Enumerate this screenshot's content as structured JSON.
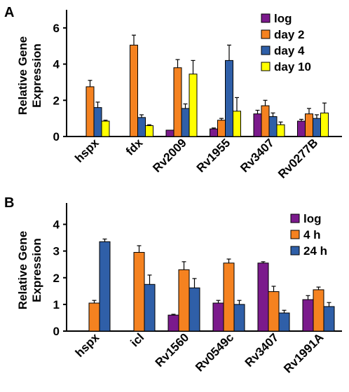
{
  "chart_data": [
    {
      "type": "bar",
      "panel": "A",
      "ylabel": [
        "Relative Gene",
        "Expression"
      ],
      "ylim": [
        0,
        7
      ],
      "yticks": [
        0,
        2,
        4,
        6
      ],
      "categories": [
        "hspx",
        "fdx",
        "Rv2009",
        "Rv1955",
        "Rv3407",
        "Rv0277B"
      ],
      "series": [
        {
          "name": "log",
          "color": "#7b1a8c",
          "values": [
            0.02,
            0.02,
            0.35,
            0.42,
            1.25,
            0.85
          ],
          "errors": [
            0.0,
            0.0,
            0.0,
            0.05,
            0.2,
            0.1
          ]
        },
        {
          "name": "day 2",
          "color": "#f58220",
          "values": [
            2.75,
            5.05,
            3.8,
            0.9,
            1.7,
            1.25
          ],
          "errors": [
            0.35,
            0.55,
            0.45,
            0.1,
            0.3,
            0.3
          ]
        },
        {
          "name": "day 4",
          "color": "#2f5fa8",
          "values": [
            1.6,
            1.05,
            1.55,
            4.2,
            1.1,
            1.0
          ],
          "errors": [
            0.3,
            0.15,
            0.25,
            0.85,
            0.2,
            0.2
          ]
        },
        {
          "name": "day 10",
          "color": "#ffff00",
          "values": [
            0.85,
            0.6,
            3.45,
            1.4,
            0.65,
            1.3
          ],
          "errors": [
            0.05,
            0.05,
            0.75,
            0.75,
            0.15,
            0.55
          ]
        }
      ],
      "legend_position": "top-right",
      "grid": false
    },
    {
      "type": "bar",
      "panel": "B",
      "ylabel": [
        "Relative Gene",
        "Expression"
      ],
      "ylim": [
        0,
        4.8
      ],
      "yticks": [
        0,
        1,
        2,
        3,
        4
      ],
      "categories": [
        "hspx",
        "icl",
        "Rv1560",
        "Rv0549c",
        "Rv3407",
        "Rv1991A"
      ],
      "series": [
        {
          "name": "log",
          "color": "#7b1a8c",
          "values": [
            0.01,
            0.01,
            0.6,
            1.05,
            2.55,
            1.18
          ],
          "errors": [
            0.0,
            0.0,
            0.03,
            0.1,
            0.05,
            0.15
          ]
        },
        {
          "name": "4 h",
          "color": "#f58220",
          "values": [
            1.05,
            2.95,
            2.3,
            2.55,
            1.48,
            1.55
          ],
          "errors": [
            0.1,
            0.25,
            0.3,
            0.15,
            0.2,
            0.1
          ]
        },
        {
          "name": "24 h",
          "color": "#2f5fa8",
          "values": [
            3.35,
            1.75,
            1.62,
            1.0,
            0.68,
            0.92
          ],
          "errors": [
            0.1,
            0.35,
            0.35,
            0.15,
            0.1,
            0.15
          ]
        }
      ],
      "legend_position": "top-right",
      "grid": false
    }
  ]
}
